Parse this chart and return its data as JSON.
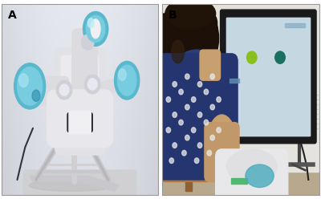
{
  "label_A": "A",
  "label_B": "B",
  "label_fontsize": 10,
  "label_fontweight": "bold",
  "label_color": "#000000",
  "figsize": [
    4.0,
    2.48
  ],
  "dpi": 100,
  "fig_bg": "#ffffff",
  "border_color": "#bbbbbb",
  "panel_A_bg": [
    220,
    220,
    225
  ],
  "panel_B_bg": [
    190,
    185,
    175
  ],
  "robot_white": [
    240,
    240,
    242
  ],
  "robot_blue": [
    100,
    195,
    215
  ],
  "robot_shadow": [
    160,
    160,
    168
  ],
  "robot_chrome": [
    180,
    185,
    195
  ],
  "person_hair": [
    30,
    18,
    10
  ],
  "person_shirt_dark": [
    45,
    65,
    110
  ],
  "person_shirt_light": [
    240,
    240,
    240
  ],
  "person_skin": [
    195,
    155,
    120
  ],
  "screen_bg": [
    170,
    200,
    215
  ],
  "screen_border": [
    30,
    30,
    30
  ],
  "screen_frame_outer": [
    20,
    20,
    20
  ],
  "dot_yellow": [
    130,
    185,
    30
  ],
  "dot_teal": [
    20,
    110,
    90
  ],
  "wall_color": [
    225,
    222,
    215
  ],
  "floor_color": [
    175,
    160,
    130
  ],
  "chair_color": [
    165,
    120,
    60
  ],
  "wrist_robot_white": [
    235,
    235,
    235
  ],
  "wrist_robot_blue": [
    80,
    175,
    195
  ]
}
